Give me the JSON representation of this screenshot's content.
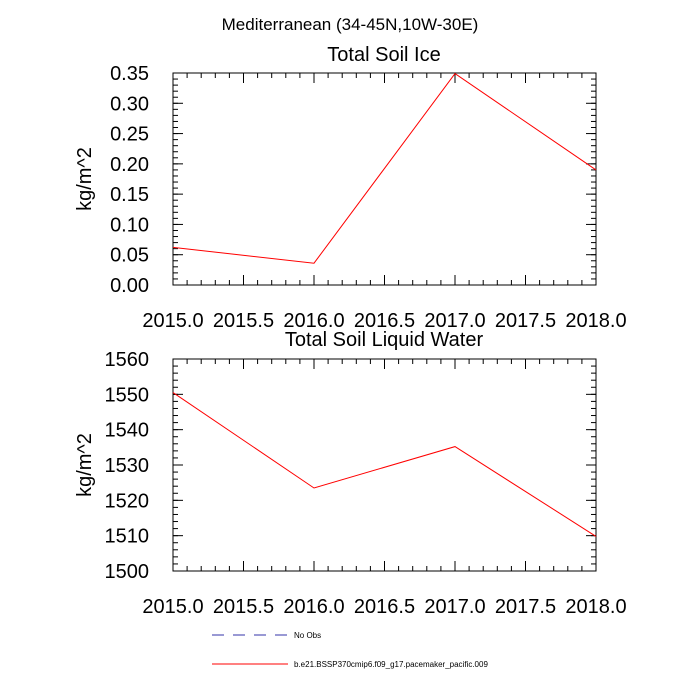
{
  "figure_title": "Mediterranean (34-45N,10W-30E)",
  "chart_data": [
    {
      "type": "line",
      "title": "Total Soil Ice",
      "xlabel": "",
      "ylabel": "kg/m^2",
      "xlim": [
        2015.0,
        2018.0
      ],
      "ylim": [
        0.0,
        0.35
      ],
      "xticks": [
        "2015.0",
        "2015.5",
        "2016.0",
        "2016.5",
        "2017.0",
        "2017.5",
        "2018.0"
      ],
      "xtick_values": [
        2015.0,
        2015.5,
        2016.0,
        2016.5,
        2017.0,
        2017.5,
        2018.0
      ],
      "yticks": [
        "0.00",
        "0.05",
        "0.10",
        "0.15",
        "0.20",
        "0.25",
        "0.30",
        "0.35"
      ],
      "ytick_values": [
        0.0,
        0.05,
        0.1,
        0.15,
        0.2,
        0.25,
        0.3,
        0.35
      ],
      "series": [
        {
          "name": "b.e21.BSSP370cmip6.f09_g17.pacemaker_pacific.009",
          "color": "#ff0000",
          "x": [
            2015.0,
            2016.0,
            2017.0,
            2018.0
          ],
          "y": [
            0.062,
            0.036,
            0.349,
            0.19
          ]
        }
      ]
    },
    {
      "type": "line",
      "title": "Total Soil Liquid Water",
      "xlabel": "",
      "ylabel": "kg/m^2",
      "xlim": [
        2015.0,
        2018.0
      ],
      "ylim": [
        1500,
        1560
      ],
      "xticks": [
        "2015.0",
        "2015.5",
        "2016.0",
        "2016.5",
        "2017.0",
        "2017.5",
        "2018.0"
      ],
      "xtick_values": [
        2015.0,
        2015.5,
        2016.0,
        2016.5,
        2017.0,
        2017.5,
        2018.0
      ],
      "yticks": [
        "1500",
        "1510",
        "1520",
        "1530",
        "1540",
        "1550",
        "1560"
      ],
      "ytick_values": [
        1500,
        1510,
        1520,
        1530,
        1540,
        1550,
        1560
      ],
      "series": [
        {
          "name": "b.e21.BSSP370cmip6.f09_g17.pacemaker_pacific.009",
          "color": "#ff0000",
          "x": [
            2015.0,
            2016.0,
            2017.0,
            2018.0
          ],
          "y": [
            1550.5,
            1523.5,
            1535.2,
            1509.8
          ]
        }
      ]
    }
  ],
  "legend": [
    {
      "label": "No Obs",
      "color": "#3333aa",
      "style": "dashed"
    },
    {
      "label": "b.e21.BSSP370cmip6.f09_g17.pacemaker_pacific.009",
      "color": "#ff0000",
      "style": "solid"
    }
  ]
}
